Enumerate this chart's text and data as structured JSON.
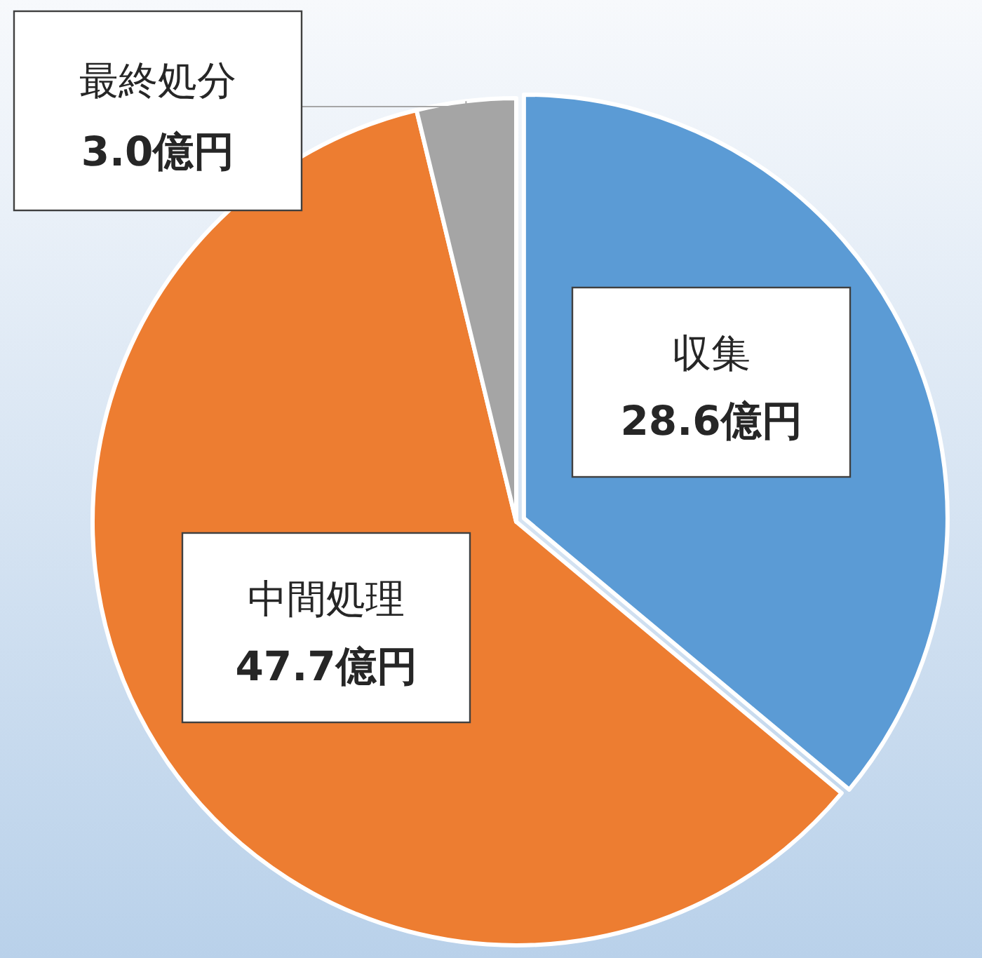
{
  "chart_data": {
    "type": "pie",
    "categories": [
      "収集",
      "中間処理",
      "最終処分"
    ],
    "values": [
      28.6,
      47.7,
      3.0
    ],
    "colors": [
      "#5b9bd5",
      "#ed7d31",
      "#a5a5a5"
    ],
    "value_labels": [
      "28.6億円",
      "47.7億円",
      "3.0億円"
    ]
  }
}
